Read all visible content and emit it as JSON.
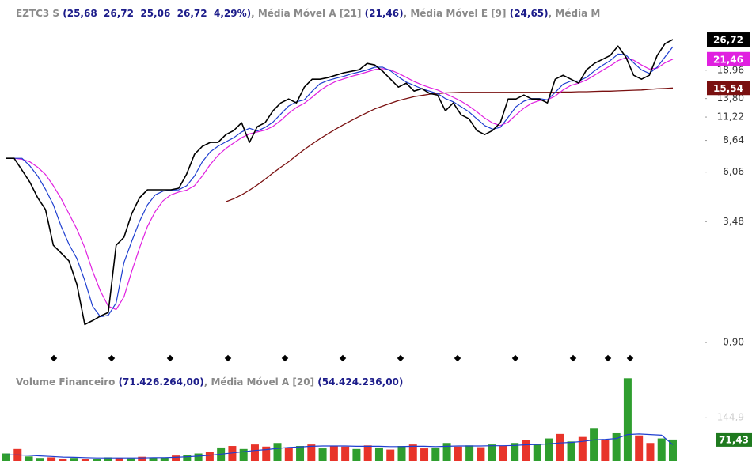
{
  "chart_data": [
    {
      "type": "line",
      "log_scale": true,
      "title_parts": [
        {
          "text": "EZTC3 S ",
          "color": "#8a8a8a"
        },
        {
          "text": "(25,68  26,72  25,06  26,72  4,29%)",
          "color": "#1c1c8a"
        },
        {
          "text": ", Média Móvel A [21] ",
          "color": "#8a8a8a"
        },
        {
          "text": "(21,46)",
          "color": "#1c1c8a"
        },
        {
          "text": ", Média Móvel E [9] ",
          "color": "#8a8a8a"
        },
        {
          "text": "(24,65)",
          "color": "#1c1c8a"
        },
        {
          "text": ", Média M",
          "color": "#8a8a8a"
        }
      ],
      "ylim": [
        0.81,
        29.2
      ],
      "yticks": [
        {
          "value": 0.9,
          "label": "0,90"
        },
        {
          "value": 3.48,
          "label": "3,48"
        },
        {
          "value": 6.06,
          "label": "6,06"
        },
        {
          "value": 8.64,
          "label": "8,64"
        },
        {
          "value": 11.22,
          "label": "11,22"
        },
        {
          "value": 13.8,
          "label": "13,80"
        },
        {
          "value": 18.96,
          "label": "18,96"
        }
      ],
      "series": [
        {
          "name": "Média Móvel A [200]",
          "color": "#7a1010",
          "width": 1.3,
          "last_label": "15,54",
          "values": [
            null,
            null,
            null,
            null,
            null,
            null,
            null,
            null,
            null,
            null,
            null,
            null,
            null,
            null,
            null,
            null,
            null,
            null,
            null,
            null,
            null,
            null,
            null,
            null,
            null,
            null,
            null,
            null,
            4.35,
            4.5,
            4.7,
            4.95,
            5.25,
            5.6,
            6.0,
            6.4,
            6.8,
            7.3,
            7.8,
            8.3,
            8.8,
            9.3,
            9.8,
            10.3,
            10.8,
            11.3,
            11.8,
            12.3,
            12.7,
            13.1,
            13.5,
            13.8,
            14.1,
            14.3,
            14.5,
            14.6,
            14.7,
            14.75,
            14.8,
            14.8,
            14.8,
            14.8,
            14.8,
            14.8,
            14.8,
            14.8,
            14.8,
            14.8,
            14.8,
            14.8,
            14.8,
            14.85,
            14.85,
            14.9,
            14.9,
            14.95,
            15.0,
            15.0,
            15.05,
            15.1,
            15.15,
            15.2,
            15.3,
            15.4,
            15.45,
            15.54
          ]
        },
        {
          "name": "Média Móvel A [21]",
          "color": "#e020e0",
          "width": 1.2,
          "last_label": "21,46",
          "values": [
            7.07,
            7.07,
            7.0,
            6.8,
            6.4,
            5.9,
            5.2,
            4.5,
            3.8,
            3.2,
            2.6,
            2.0,
            1.6,
            1.35,
            1.3,
            1.5,
            2.0,
            2.6,
            3.3,
            3.9,
            4.4,
            4.7,
            4.85,
            4.95,
            5.2,
            5.8,
            6.6,
            7.3,
            7.9,
            8.4,
            8.9,
            9.3,
            9.5,
            9.7,
            10.1,
            10.8,
            11.7,
            12.5,
            13.1,
            14.0,
            15.1,
            16.0,
            16.7,
            17.2,
            17.7,
            18.1,
            18.6,
            19.1,
            19.3,
            19.0,
            18.3,
            17.5,
            16.7,
            16.1,
            15.6,
            15.2,
            14.6,
            14.0,
            13.4,
            12.7,
            11.9,
            11.1,
            10.5,
            10.2,
            10.6,
            11.5,
            12.4,
            13.1,
            13.5,
            13.6,
            14.2,
            15.2,
            16.0,
            16.4,
            17.0,
            17.9,
            18.9,
            19.9,
            21.1,
            21.8,
            21.2,
            20.1,
            19.2,
            19.4,
            20.6,
            21.46
          ]
        },
        {
          "name": "Média Móvel E [9]",
          "color": "#1f3fd0",
          "width": 1.2,
          "values": [
            7.07,
            7.07,
            7.07,
            6.5,
            5.8,
            5.0,
            4.2,
            3.3,
            2.7,
            2.3,
            1.8,
            1.35,
            1.2,
            1.22,
            1.4,
            2.2,
            2.8,
            3.5,
            4.2,
            4.7,
            4.9,
            4.95,
            4.97,
            5.2,
            5.8,
            6.8,
            7.6,
            8.1,
            8.5,
            8.9,
            9.5,
            9.9,
            9.6,
            10.0,
            10.6,
            11.6,
            12.7,
            13.3,
            13.6,
            15.0,
            16.3,
            16.9,
            17.3,
            17.7,
            18.2,
            18.6,
            19.0,
            19.6,
            19.6,
            18.8,
            17.6,
            16.6,
            16.0,
            15.4,
            15.0,
            14.6,
            13.8,
            13.3,
            12.6,
            11.9,
            11.0,
            10.2,
            9.8,
            10.0,
            11.2,
            12.6,
            13.4,
            13.8,
            13.8,
            13.6,
            14.8,
            16.2,
            16.8,
            16.8,
            17.5,
            18.8,
            20.0,
            21.1,
            22.7,
            22.5,
            20.6,
            19.0,
            18.3,
            19.6,
            22.0,
            24.65
          ]
        },
        {
          "name": "EZTC3 S",
          "color": "#000000",
          "width": 1.6,
          "last_label": "26,72",
          "values": [
            7.07,
            7.07,
            6.19,
            5.42,
            4.55,
            3.98,
            2.67,
            2.45,
            2.24,
            1.72,
            1.1,
            1.15,
            1.21,
            1.26,
            2.67,
            2.92,
            3.81,
            4.55,
            4.97,
            4.97,
            4.97,
            4.97,
            5.06,
            5.93,
            7.39,
            8.08,
            8.45,
            8.45,
            9.22,
            9.65,
            10.53,
            8.45,
            10.08,
            10.53,
            12.03,
            13.14,
            13.74,
            13.14,
            15.69,
            17.14,
            17.14,
            17.45,
            17.92,
            18.41,
            18.72,
            19.06,
            20.46,
            20.1,
            18.72,
            17.14,
            15.69,
            16.4,
            15.01,
            15.42,
            14.62,
            14.36,
            12.03,
            13.14,
            11.51,
            11.01,
            9.65,
            9.22,
            9.65,
            10.53,
            13.74,
            13.74,
            14.36,
            13.74,
            13.74,
            13.14,
            17.14,
            17.92,
            17.14,
            16.4,
            19.06,
            20.46,
            21.38,
            22.35,
            24.86,
            21.97,
            17.92,
            17.14,
            17.92,
            22.35,
            25.52,
            26.72
          ]
        }
      ]
    },
    {
      "type": "bar",
      "title_parts": [
        {
          "text": "Volume Financeiro ",
          "color": "#8a8a8a"
        },
        {
          "text": "(71.426.264,00)",
          "color": "#1c1c8a"
        },
        {
          "text": ", Média Móvel A [20] ",
          "color": "#8a8a8a"
        },
        {
          "text": "(54.424.236,00)",
          "color": "#1c1c8a"
        }
      ],
      "ylim": [
        0,
        290
      ],
      "yticks": [
        {
          "value": 144.9,
          "label": "144,9"
        }
      ],
      "last_label": "71,43",
      "values": [
        25,
        40,
        15,
        10,
        12,
        8,
        10,
        6,
        8,
        12,
        10,
        9,
        14,
        11,
        12,
        18,
        20,
        25,
        30,
        45,
        50,
        40,
        55,
        48,
        60,
        45,
        50,
        55,
        42,
        50,
        48,
        40,
        52,
        45,
        38,
        50,
        55,
        42,
        45,
        60,
        48,
        52,
        46,
        55,
        50,
        60,
        70,
        55,
        75,
        90,
        65,
        80,
        110,
        70,
        95,
        276,
        85,
        60,
        75,
        71.43
      ],
      "colors": [
        "#2f9e2f",
        "#e8342a",
        "#2f9e2f",
        "#2f9e2f",
        "#e8342a",
        "#e8342a",
        "#2f9e2f",
        "#e8342a",
        "#2f9e2f",
        "#2f9e2f",
        "#e8342a",
        "#2f9e2f",
        "#e8342a",
        "#2f9e2f",
        "#2f9e2f",
        "#e8342a",
        "#2f9e2f",
        "#2f9e2f",
        "#e8342a",
        "#2f9e2f",
        "#e8342a",
        "#2f9e2f",
        "#e8342a",
        "#e8342a",
        "#2f9e2f",
        "#e8342a",
        "#2f9e2f",
        "#e8342a",
        "#2f9e2f",
        "#e8342a",
        "#e8342a",
        "#2f9e2f",
        "#e8342a",
        "#2f9e2f",
        "#e8342a",
        "#2f9e2f",
        "#e8342a",
        "#e8342a",
        "#2f9e2f",
        "#2f9e2f",
        "#e8342a",
        "#2f9e2f",
        "#e8342a",
        "#2f9e2f",
        "#e8342a",
        "#2f9e2f",
        "#e8342a",
        "#2f9e2f",
        "#2f9e2f",
        "#e8342a",
        "#2f9e2f",
        "#e8342a",
        "#2f9e2f",
        "#e8342a",
        "#2f9e2f",
        "#2f9e2f",
        "#e8342a",
        "#e8342a",
        "#2f9e2f",
        "#2f9e2f"
      ],
      "series": [
        {
          "name": "Média Móvel A [20]",
          "color": "#1f3fd0",
          "values": [
            20,
            20,
            19,
            17,
            15,
            13,
            12,
            11,
            10,
            10,
            10,
            10,
            10,
            11,
            11,
            12,
            14,
            16,
            19,
            23,
            27,
            31,
            35,
            38,
            42,
            45,
            47,
            49,
            50,
            50,
            50,
            49,
            49,
            49,
            48,
            48,
            49,
            49,
            48,
            49,
            50,
            50,
            50,
            51,
            51,
            52,
            54,
            55,
            57,
            60,
            62,
            65,
            70,
            72,
            75,
            88,
            90,
            88,
            86,
            54.42
          ]
        }
      ]
    }
  ]
}
